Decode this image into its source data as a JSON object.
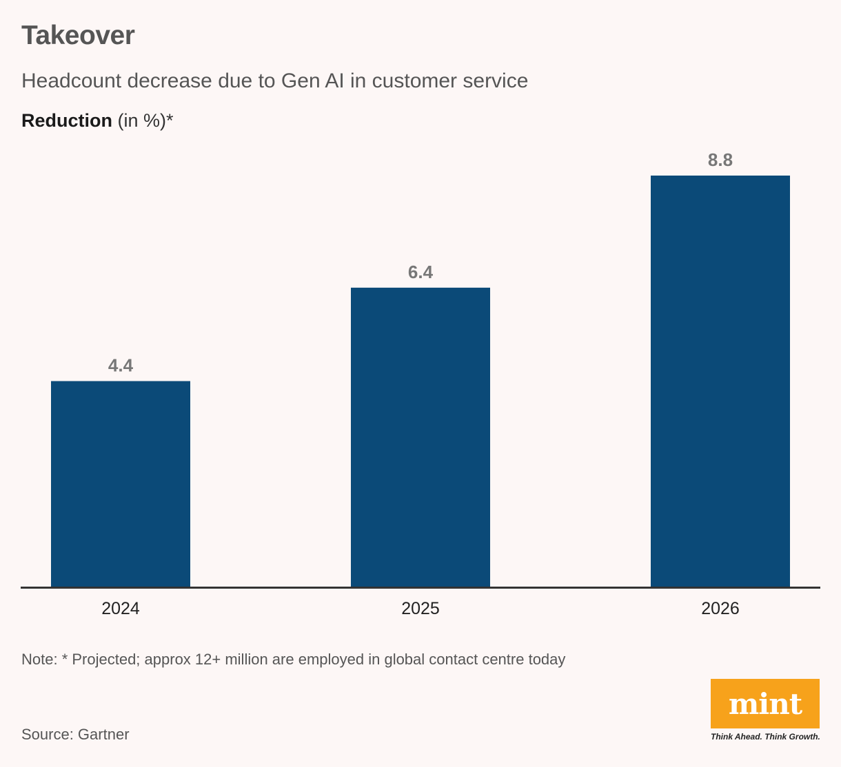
{
  "header": {
    "title": "Takeover",
    "subtitle": "Headcount decrease due to Gen AI in customer service",
    "unit_bold": "Reduction",
    "unit_rest": " (in %)*"
  },
  "chart_data": {
    "type": "bar",
    "title": "Takeover",
    "subtitle": "Headcount decrease due to Gen AI in customer service",
    "ylabel": "Reduction (in %)*",
    "xlabel": "",
    "categories": [
      "2024",
      "2025",
      "2026"
    ],
    "values": [
      4.4,
      6.4,
      8.8
    ],
    "data_labels": [
      "4.4",
      "6.4",
      "8.8"
    ],
    "ylim": [
      0,
      8.8
    ],
    "grid": false,
    "legend": "none",
    "bar_color": "#0b4a78",
    "label_color": "#777777",
    "axis_color": "#333333"
  },
  "footer": {
    "note": "Note: * Projected; approx 12+ million are employed in global contact centre today",
    "source": "Source: Gartner"
  },
  "brand": {
    "logo": "mint",
    "tagline": "Think Ahead. Think Growth.",
    "color": "#f7a21b"
  }
}
